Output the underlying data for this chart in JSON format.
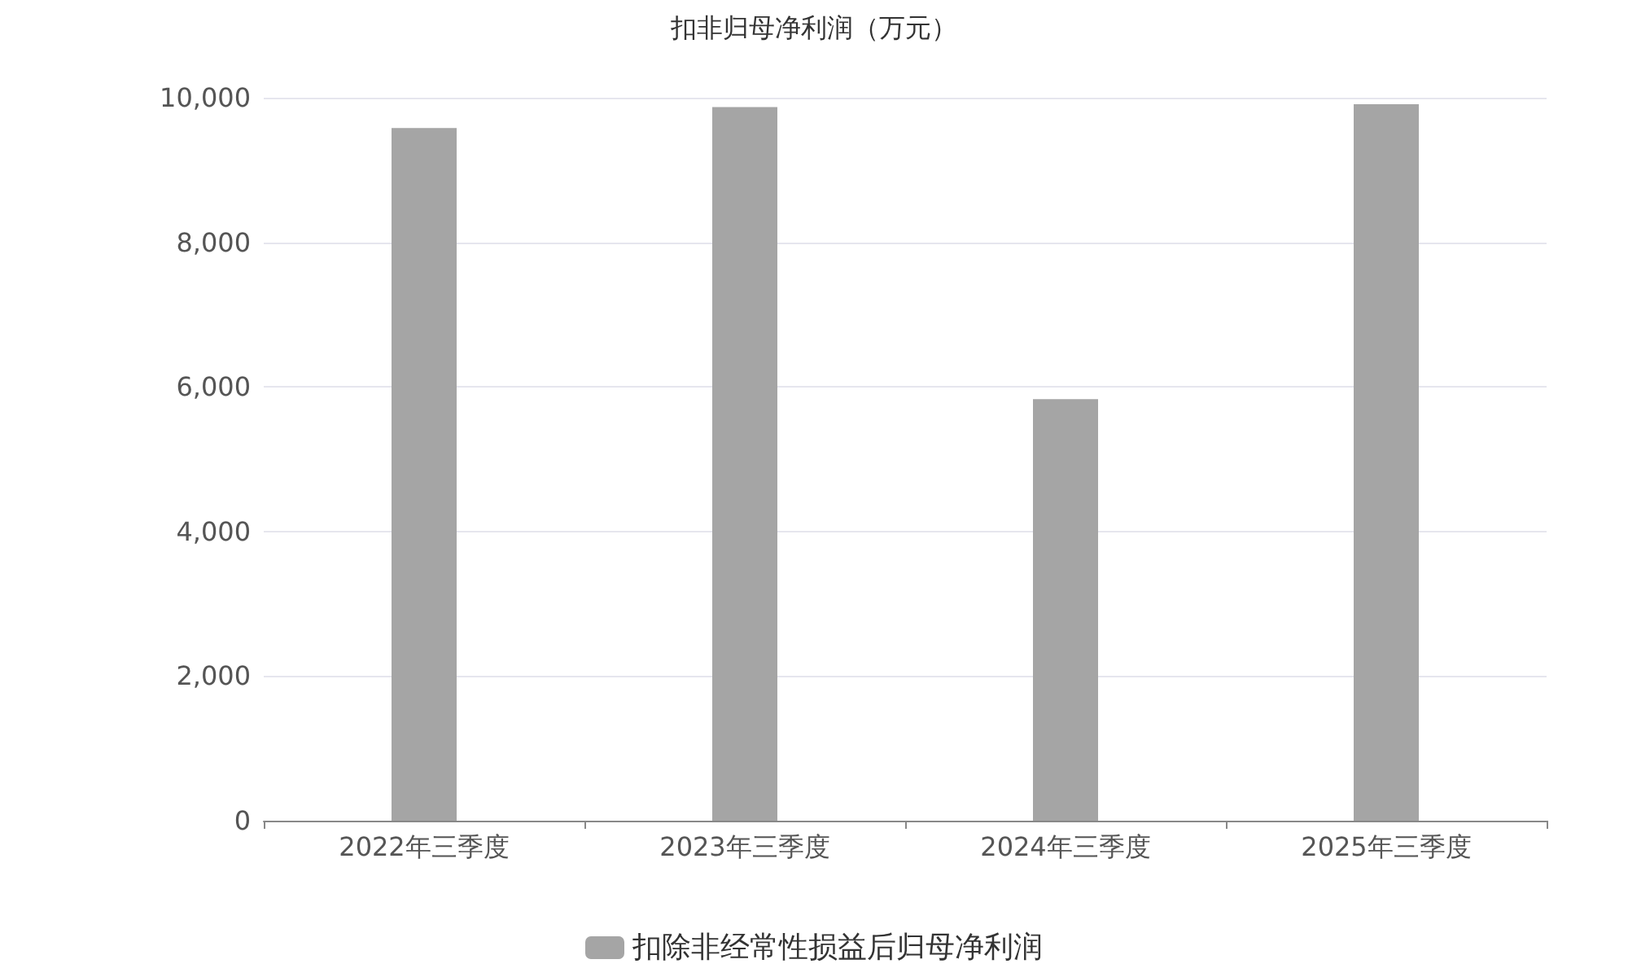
{
  "chart_data": {
    "type": "bar",
    "title": "扣非归母净利润（万元）",
    "categories": [
      "2022年三季度",
      "2023年三季度",
      "2024年三季度",
      "2025年三季度"
    ],
    "series": [
      {
        "name": "扣除非经常性损益后归母净利润",
        "color": "#a5a5a5",
        "values": [
          9580,
          9870,
          5830,
          9910
        ]
      }
    ],
    "ylim": [
      0,
      10000
    ],
    "yticks": [
      0,
      {
        "value": 2000,
        "label": "2,000"
      },
      {
        "value": 4000,
        "label": "4,000"
      },
      {
        "value": 6000,
        "label": "6,000"
      },
      {
        "value": 8000,
        "label": "8,000"
      },
      {
        "value": 10000,
        "label": "10,000"
      }
    ],
    "grid": "y",
    "legend": "bottom"
  }
}
